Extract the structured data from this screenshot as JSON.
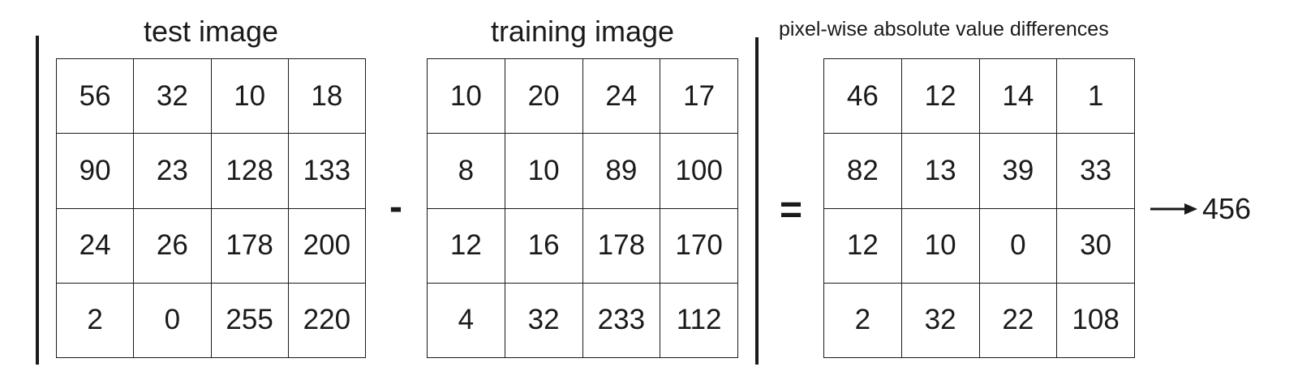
{
  "test_image": {
    "title": "test image",
    "rows": [
      [
        "56",
        "32",
        "10",
        "18"
      ],
      [
        "90",
        "23",
        "128",
        "133"
      ],
      [
        "24",
        "26",
        "178",
        "200"
      ],
      [
        "2",
        "0",
        "255",
        "220"
      ]
    ]
  },
  "training_image": {
    "title": "training image",
    "rows": [
      [
        "10",
        "20",
        "24",
        "17"
      ],
      [
        "8",
        "10",
        "89",
        "100"
      ],
      [
        "12",
        "16",
        "178",
        "170"
      ],
      [
        "4",
        "32",
        "233",
        "112"
      ]
    ]
  },
  "differences": {
    "title": "pixel-wise absolute value differences",
    "rows": [
      [
        "46",
        "12",
        "14",
        "1"
      ],
      [
        "82",
        "13",
        "39",
        "33"
      ],
      [
        "12",
        "10",
        "0",
        "30"
      ],
      [
        "2",
        "32",
        "22",
        "108"
      ]
    ]
  },
  "operators": {
    "minus": "-",
    "equals": "="
  },
  "result": "456",
  "colors": {
    "ink": "#1a1a1a",
    "background": "#ffffff"
  }
}
